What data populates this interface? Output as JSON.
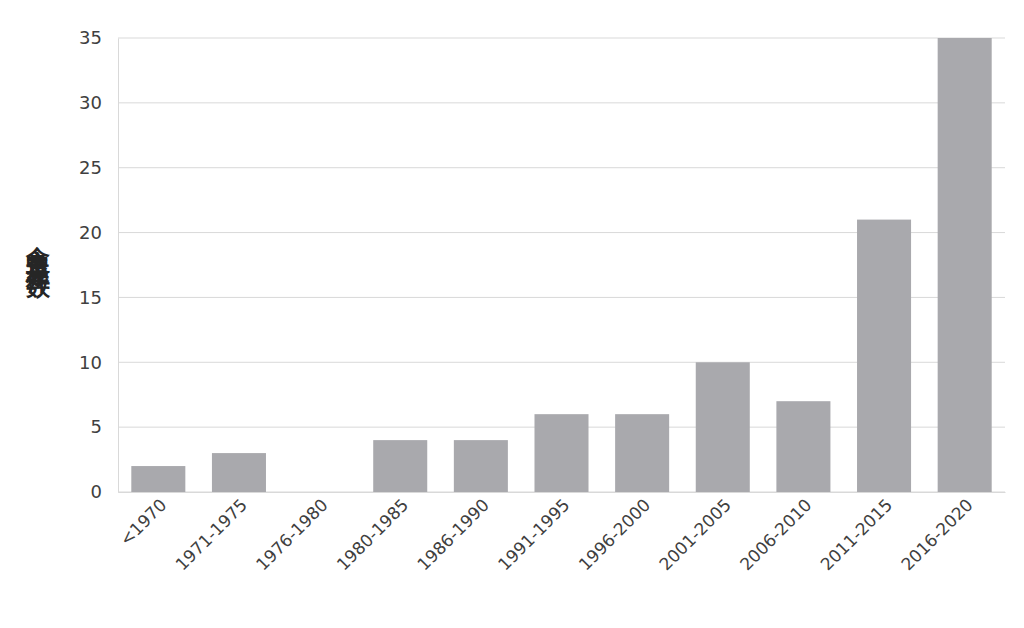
{
  "chart_data": {
    "type": "bar",
    "y_label": "食中毒発生件数",
    "categories": [
      "<1970",
      "1971-1975",
      "1976-1980",
      "1980-1985",
      "1986-1990",
      "1991-1995",
      "1996-2000",
      "2001-2005",
      "2006-2010",
      "2011-2015",
      "2016-2020"
    ],
    "values": [
      2,
      3,
      0,
      4,
      4,
      6,
      6,
      10,
      7,
      21,
      35
    ],
    "color": "#a9a9ad",
    "ylim": [
      0,
      35
    ],
    "yticks": [
      0,
      5,
      10,
      15,
      20,
      25,
      30,
      35
    ],
    "grid": true
  }
}
